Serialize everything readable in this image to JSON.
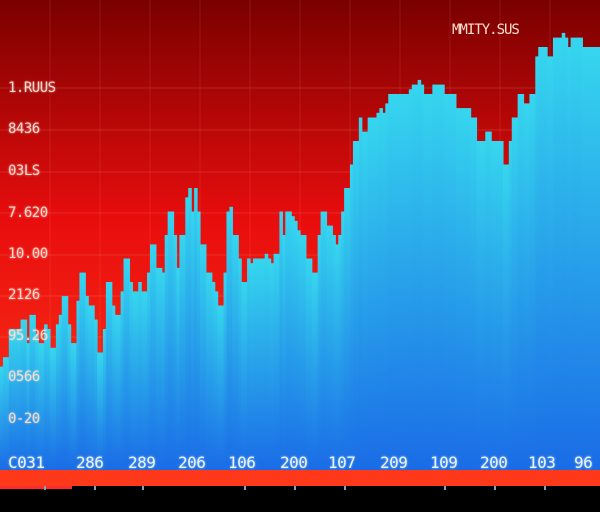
{
  "chart_data": {
    "type": "bar",
    "title": "MMITY.SUS",
    "ytick_labels": [
      "1.RUUS",
      "8436",
      "03LS",
      "7.620",
      "10.00",
      "2126",
      "95.26",
      "0566",
      "0-20"
    ],
    "xtick_labels": [
      "C031",
      "286",
      "289",
      "206",
      "106",
      "200",
      "107",
      "209",
      "109",
      "200",
      "103",
      "96"
    ],
    "ylim": [
      0,
      100
    ],
    "values": [
      22,
      24,
      24,
      30,
      30,
      30,
      30,
      32,
      32,
      27,
      33,
      33,
      29,
      27,
      27,
      31,
      30,
      26,
      26,
      31,
      33,
      37,
      37,
      31,
      27,
      27,
      36,
      42,
      42,
      37,
      35,
      35,
      32,
      25,
      25,
      30,
      40,
      40,
      35,
      33,
      33,
      38,
      45,
      45,
      40,
      38,
      38,
      40,
      38,
      38,
      42,
      48,
      48,
      43,
      43,
      42,
      50,
      55,
      55,
      50,
      43,
      50,
      50,
      58,
      60,
      55,
      60,
      55,
      48,
      48,
      42,
      42,
      40,
      38,
      35,
      35,
      42,
      55,
      56,
      50,
      50,
      45,
      40,
      40,
      45,
      44,
      45,
      45,
      45,
      45,
      46,
      45,
      44,
      46,
      46,
      55,
      50,
      55,
      55,
      54,
      53,
      51,
      50,
      50,
      45,
      45,
      42,
      42,
      50,
      55,
      55,
      52,
      52,
      50,
      48,
      50,
      55,
      60,
      60,
      65,
      70,
      70,
      75,
      72,
      72,
      75,
      75,
      75,
      76,
      77,
      76,
      78,
      80,
      80,
      80,
      80,
      80,
      80,
      80,
      81,
      82,
      82,
      83,
      82,
      80,
      80,
      80,
      82,
      82,
      82,
      82,
      80,
      80,
      80,
      80,
      77,
      77,
      77,
      77,
      77,
      75,
      75,
      70,
      70,
      70,
      72,
      72,
      70,
      70,
      70,
      70,
      65,
      65,
      70,
      75,
      75,
      80,
      80,
      78,
      78,
      80,
      80,
      88,
      90,
      90,
      90,
      88,
      88,
      92,
      92,
      92,
      93,
      92,
      90,
      92,
      92,
      92,
      92,
      90,
      90,
      90,
      90,
      90,
      90
    ],
    "colors": {
      "background_top": "#7a0000",
      "background_mid": "#e80d0d",
      "background_bottom": "#ff3a1a",
      "bar_top": "#36d6ee",
      "bar_bottom": "#1a6ce6"
    }
  },
  "progress": 0.12
}
